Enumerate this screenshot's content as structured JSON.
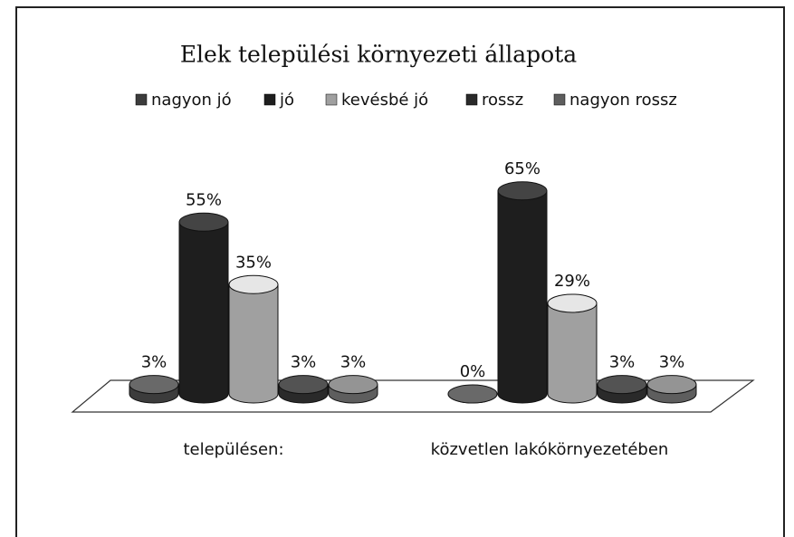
{
  "chart_data": {
    "type": "bar3d",
    "title": "Elek települési környezeti állapota",
    "categories": [
      "településen:",
      "közvetlen lakókörnyezetében"
    ],
    "series": [
      {
        "name": "nagyon jó",
        "color": "#3c3c3c",
        "values": [
          3,
          0
        ],
        "value_labels": [
          "3%",
          "0%"
        ]
      },
      {
        "name": "jó",
        "color": "#1e1e1e",
        "values": [
          55,
          65
        ],
        "value_labels": [
          "55%",
          "65%"
        ]
      },
      {
        "name": "kevésbé jó",
        "color": "#a0a0a0",
        "values": [
          35,
          29
        ],
        "value_labels": [
          "35%",
          "29%"
        ]
      },
      {
        "name": "rossz",
        "color": "#2a2a2a",
        "values": [
          3,
          3
        ],
        "value_labels": [
          "3%",
          "3%"
        ]
      },
      {
        "name": "nagyon rossz",
        "color": "#5e5e5e",
        "values": [
          3,
          3
        ],
        "value_labels": [
          "3%",
          "3%"
        ]
      }
    ],
    "legend": "top"
  }
}
